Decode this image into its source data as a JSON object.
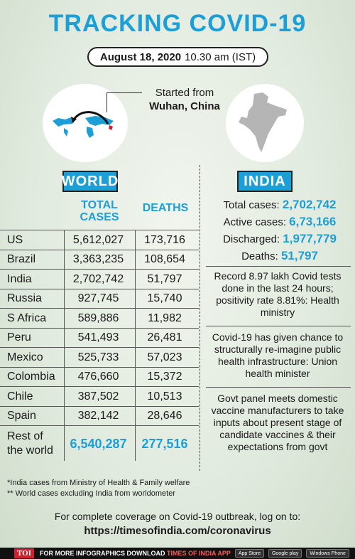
{
  "header": {
    "title": "TRACKING COVID-19",
    "date": "August 18, 2020",
    "time": "10.30 am (IST)"
  },
  "origin": {
    "line1": "Started from",
    "line2": "Wuhan, China"
  },
  "world": {
    "label": "WORLD",
    "col_total": "TOTAL CASES",
    "col_deaths": "DEATHS",
    "rows": [
      {
        "country": "US",
        "total": "5,612,027",
        "deaths": "173,716"
      },
      {
        "country": "Brazil",
        "total": "3,363,235",
        "deaths": "108,654"
      },
      {
        "country": "India",
        "total": "2,702,742",
        "deaths": "51,797"
      },
      {
        "country": "Russia",
        "total": "927,745",
        "deaths": "15,740"
      },
      {
        "country": "S Africa",
        "total": "589,886",
        "deaths": "11,982"
      },
      {
        "country": "Peru",
        "total": "541,493",
        "deaths": "26,481"
      },
      {
        "country": "Mexico",
        "total": "525,733",
        "deaths": "57,023"
      },
      {
        "country": "Colombia",
        "total": "476,660",
        "deaths": "15,372"
      },
      {
        "country": "Chile",
        "total": "387,502",
        "deaths": "10,513"
      },
      {
        "country": "Spain",
        "total": "382,142",
        "deaths": "28,646"
      }
    ],
    "rest": {
      "line1": "Rest of",
      "line2": "the world",
      "total": "6,540,287",
      "deaths": "277,516"
    }
  },
  "india": {
    "label": "INDIA",
    "stats": [
      {
        "label": "Total cases:",
        "value": "2,702,742"
      },
      {
        "label": "Active cases:",
        "value": "6,73,166"
      },
      {
        "label": "Discharged:",
        "value": "1,977,779"
      },
      {
        "label": "Deaths:",
        "value": "51,797"
      }
    ],
    "notes": [
      "Record 8.97 lakh Covid tests done in the last 24 hours; positivity rate 8.81%: Health ministry",
      "Covid-19 has given chance to structurally re-imagine public health infrastructure: Union health minister",
      "Govt panel meets domestic vaccine manufacturers to take inputs about present stage of candidate vaccines & their expectations from govt"
    ]
  },
  "footnotes": {
    "note1": "*India cases from Ministry of Health & Family welfare",
    "note2": "** World cases excluding India from worldometer"
  },
  "footer": {
    "text": "For complete coverage on Covid-19 outbreak, log on to:",
    "url": "https://timesofindia.com/coronavirus"
  },
  "bottom_bar": {
    "logo": "TOI",
    "message_a": "FOR MORE  INFOGRAPHICS DOWNLOAD ",
    "message_b": "TIMES OF INDIA  APP",
    "app_store": "App Store",
    "google_play": "Google play",
    "windows": "Windows Phone"
  },
  "colors": {
    "accent": "#1b9fd6",
    "background": "#e2ebdf"
  }
}
